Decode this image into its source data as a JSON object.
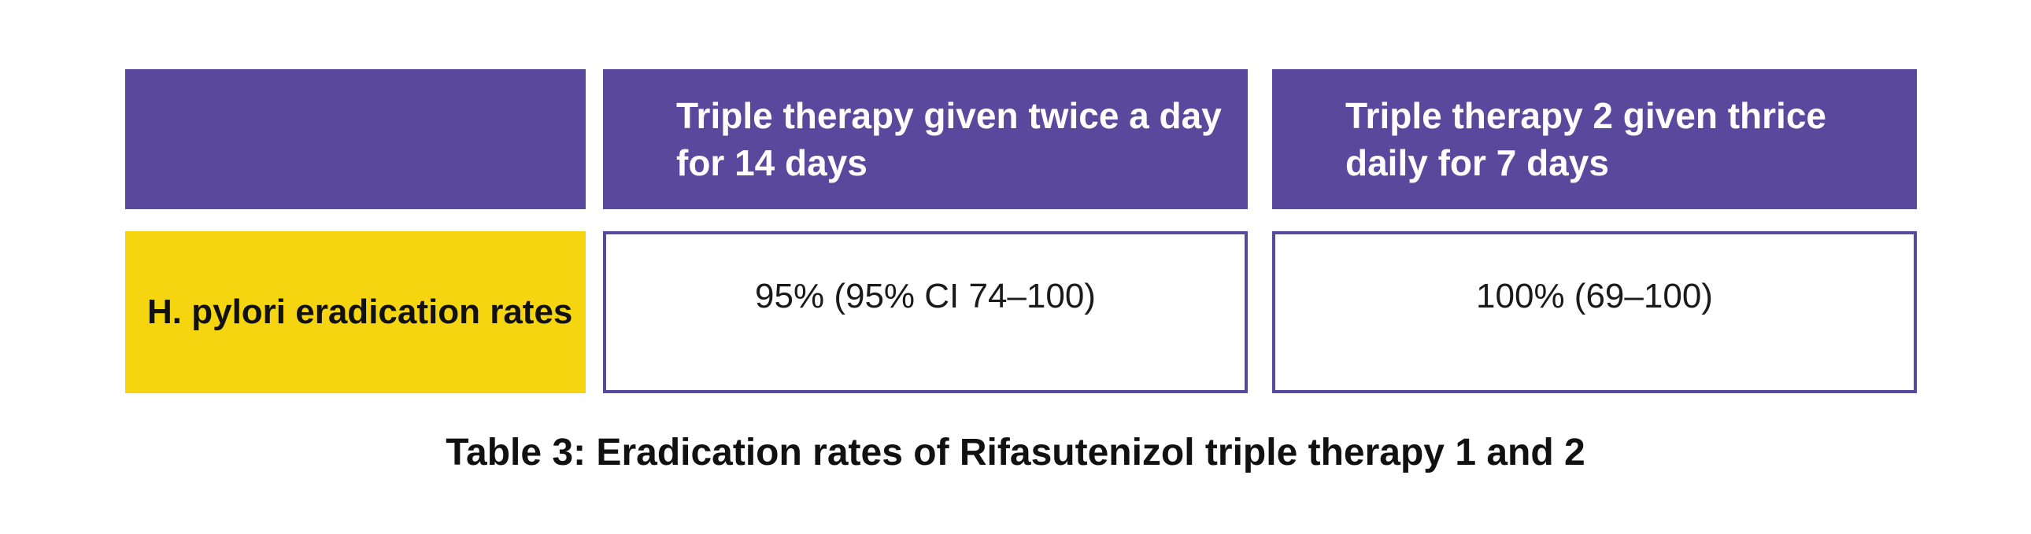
{
  "table": {
    "columns": [
      "Triple therapy given twice a day for 14 days",
      "Triple therapy 2 given thrice daily for 7 days"
    ],
    "rows": [
      {
        "label": "H. pylori eradication rates",
        "cells": [
          "95% (95% CI 74–100)",
          "100% (69–100)"
        ]
      }
    ]
  },
  "caption": "Table 3: Eradication rates of Rifasutenizol triple therapy 1 and 2"
}
